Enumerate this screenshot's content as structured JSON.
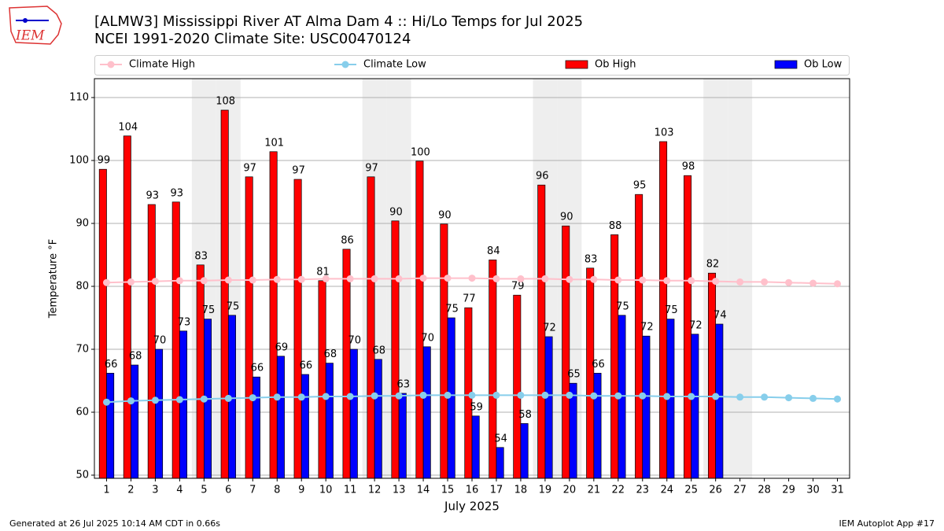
{
  "chart_data": {
    "type": "bar",
    "title": "[ALMW3] Mississippi River  AT Alma Dam 4 :: Hi/Lo Temps for Jul 2025",
    "subtitle": "NCEI 1991-2020 Climate Site: USC00470124",
    "x_label": "July 2025",
    "y_label": "Temperature $^\\circ$F",
    "footer_left": "Generated at 26 Jul 2025 10:14 AM CDT in 0.66s",
    "footer_right": "IEM Autoplot App #17",
    "logo": "IEM",
    "x": [
      1,
      2,
      3,
      4,
      5,
      6,
      7,
      8,
      9,
      10,
      11,
      12,
      13,
      14,
      15,
      16,
      17,
      18,
      19,
      20,
      21,
      22,
      23,
      24,
      25,
      26,
      27,
      28,
      29,
      30,
      31
    ],
    "xlim": [
      0.5,
      31.5
    ],
    "xticks": [
      1,
      2,
      3,
      4,
      5,
      6,
      7,
      8,
      9,
      10,
      11,
      12,
      13,
      14,
      15,
      16,
      17,
      18,
      19,
      20,
      21,
      22,
      23,
      24,
      25,
      26,
      27,
      28,
      29,
      30,
      31
    ],
    "ylim": [
      49.5,
      113
    ],
    "yticks": [
      50,
      60,
      70,
      80,
      90,
      100,
      110
    ],
    "grid": true,
    "legend": "top",
    "highlight_days": [
      5,
      6,
      12,
      13,
      19,
      20,
      26,
      27
    ],
    "highlight_color": "#eeeeee",
    "series": [
      {
        "name": "Climate High",
        "kind": "line",
        "color": "#ffc0cb",
        "values": [
          80.6,
          80.7,
          80.8,
          80.9,
          80.9,
          81.0,
          81.0,
          81.1,
          81.1,
          81.2,
          81.2,
          81.2,
          81.2,
          81.3,
          81.3,
          81.3,
          81.2,
          81.2,
          81.2,
          81.1,
          81.1,
          81.0,
          81.0,
          80.9,
          80.9,
          80.8,
          80.7,
          80.7,
          80.6,
          80.5,
          80.4
        ]
      },
      {
        "name": "Climate Low",
        "kind": "line",
        "color": "#87ceeb",
        "values": [
          61.6,
          61.8,
          61.9,
          62.0,
          62.1,
          62.2,
          62.3,
          62.4,
          62.4,
          62.5,
          62.5,
          62.6,
          62.6,
          62.7,
          62.7,
          62.7,
          62.7,
          62.7,
          62.7,
          62.7,
          62.6,
          62.6,
          62.6,
          62.5,
          62.5,
          62.5,
          62.4,
          62.4,
          62.3,
          62.2,
          62.1
        ]
      },
      {
        "name": "Ob High",
        "kind": "bar",
        "color": "#ff0000",
        "values": [
          98.6,
          103.9,
          93.0,
          93.4,
          83.4,
          108.0,
          97.4,
          101.4,
          97.0,
          80.9,
          85.9,
          97.4,
          90.4,
          99.9,
          89.9,
          76.6,
          84.2,
          78.6,
          96.1,
          89.6,
          82.9,
          88.2,
          94.6,
          103.0,
          97.6,
          82.1,
          null,
          null,
          null,
          null,
          null
        ],
        "value_labels": [
          "99",
          "104",
          "93",
          "93",
          "83",
          "108",
          "97",
          "101",
          "97",
          "81",
          "86",
          "97",
          "90",
          "100",
          "90",
          "77",
          "84",
          "79",
          "96",
          "90",
          "83",
          "88",
          "95",
          "103",
          "98",
          "82",
          null,
          null,
          null,
          null,
          null
        ]
      },
      {
        "name": "Ob Low",
        "kind": "bar",
        "color": "#0000ff",
        "values": [
          66.2,
          67.5,
          70.0,
          72.9,
          74.8,
          75.4,
          65.6,
          68.9,
          66.0,
          67.8,
          70.0,
          68.4,
          63.0,
          70.4,
          75.0,
          59.4,
          54.4,
          58.2,
          72.0,
          64.6,
          66.2,
          75.4,
          72.1,
          74.8,
          72.4,
          74.0,
          null,
          null,
          null,
          null,
          null
        ],
        "value_labels": [
          "66",
          "68",
          "70",
          "73",
          "75",
          "75",
          "66",
          "69",
          "66",
          "68",
          "70",
          "68",
          "63",
          "70",
          "75",
          "59",
          "54",
          "58",
          "72",
          "65",
          "66",
          "75",
          "72",
          "75",
          "72",
          "74",
          null,
          null,
          null,
          null,
          null
        ]
      }
    ]
  }
}
